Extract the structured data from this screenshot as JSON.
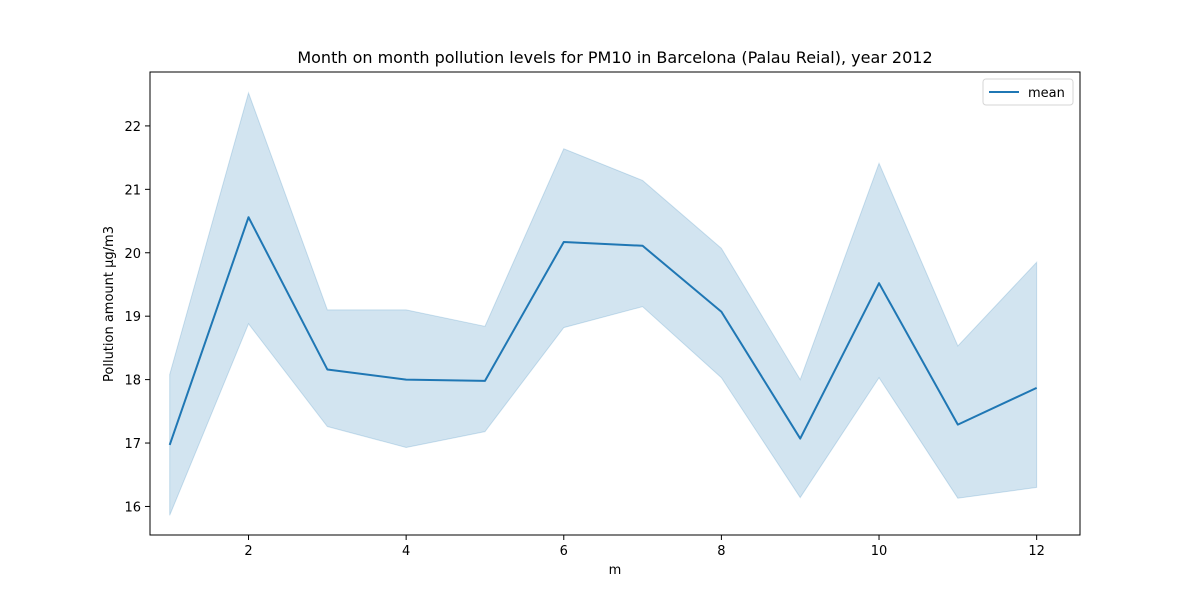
{
  "chart_data": {
    "type": "line",
    "title": "Month on month pollution levels for PM10 in Barcelona (Palau Reial), year 2012",
    "xlabel": "m",
    "ylabel": "Pollution amount μg/m3",
    "xlim": [
      0.75,
      12.55
    ],
    "ylim": [
      15.55,
      22.85
    ],
    "xticks": [
      2,
      4,
      6,
      8,
      10,
      12
    ],
    "yticks": [
      16,
      17,
      18,
      19,
      20,
      21,
      22
    ],
    "grid": false,
    "legend_position": "top-right",
    "series": [
      {
        "name": "mean",
        "color": "#1f77b4",
        "band_color": "#1f77b4",
        "x": [
          1,
          2,
          3,
          4,
          5,
          6,
          7,
          8,
          9,
          10,
          11,
          12
        ],
        "y": [
          16.97,
          20.56,
          18.16,
          18.0,
          17.98,
          20.17,
          20.11,
          19.07,
          17.07,
          19.52,
          17.29,
          17.87
        ],
        "lower": [
          15.86,
          18.88,
          17.26,
          16.93,
          17.18,
          18.82,
          19.15,
          18.03,
          16.14,
          18.03,
          16.13,
          16.3
        ],
        "upper": [
          18.08,
          22.52,
          19.1,
          19.1,
          18.84,
          21.64,
          21.14,
          20.07,
          18.0,
          21.41,
          18.53,
          19.85
        ]
      }
    ]
  }
}
